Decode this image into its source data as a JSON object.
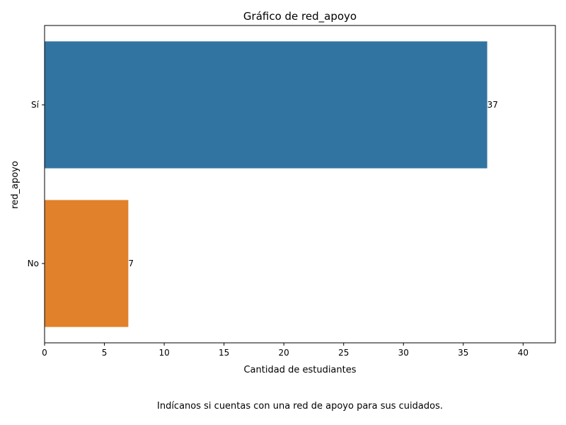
{
  "chart_data": {
    "type": "bar",
    "orientation": "horizontal",
    "title": "Gráfico de red_apoyo",
    "xlabel": "Cantidad de estudiantes",
    "ylabel": "red_apoyo",
    "categories": [
      "Sí",
      "No"
    ],
    "values": [
      37,
      7
    ],
    "data_labels": [
      "37",
      "7"
    ],
    "colors": [
      "#3274a1",
      "#e1812c"
    ],
    "xlim": [
      0,
      42.7
    ],
    "xticks": [
      0,
      5,
      10,
      15,
      20,
      25,
      30,
      35,
      40
    ],
    "grid": false
  },
  "caption": "Indícanos si cuentas con una red de apoyo para sus cuidados."
}
